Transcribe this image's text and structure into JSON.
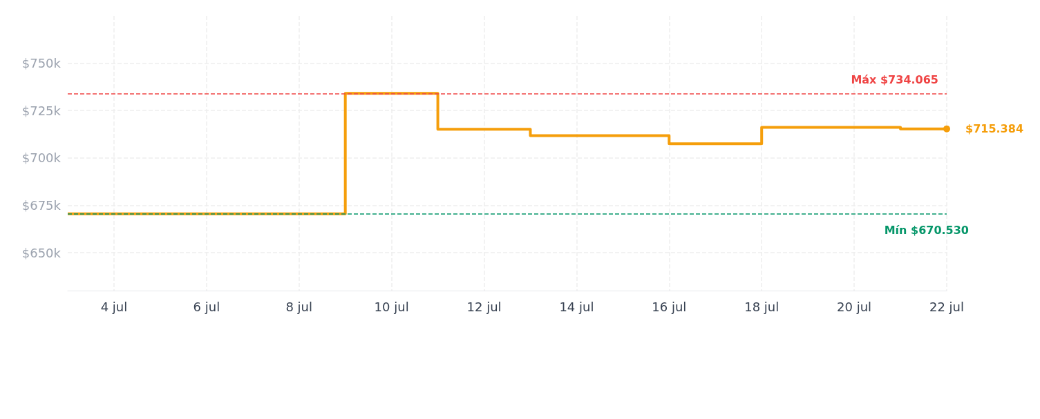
{
  "chart_data": {
    "type": "step",
    "x": [
      "--07-03",
      "--07-09",
      "--07-11",
      "--07-13",
      "--07-16",
      "--07-18",
      "--07-21",
      "--07-22"
    ],
    "series": [
      {
        "color": "#f59e0b",
        "values": [
          670530,
          734065,
          715200,
          711800,
          707500,
          716200,
          715384,
          715384
        ],
        "value_labels": [
          null,
          null,
          null,
          null,
          null,
          null,
          null,
          "$715.384"
        ]
      }
    ],
    "xlim": [
      "--07-03",
      "--07-22"
    ],
    "xticks": [
      {
        "value": "--07-04",
        "label": "4 jul"
      },
      {
        "value": "--07-06",
        "label": "6 jul"
      },
      {
        "value": "--07-08",
        "label": "8 jul"
      },
      {
        "value": "--07-10",
        "label": "10 jul"
      },
      {
        "value": "--07-12",
        "label": "12 jul"
      },
      {
        "value": "--07-14",
        "label": "14 jul"
      },
      {
        "value": "--07-16",
        "label": "16 jul"
      },
      {
        "value": "--07-18",
        "label": "18 jul"
      },
      {
        "value": "--07-20",
        "label": "20 jul"
      },
      {
        "value": "--07-22",
        "label": "22 jul"
      }
    ],
    "ylim": [
      630000,
      775000
    ],
    "yticks": [
      {
        "value": 650000,
        "label": "$650k"
      },
      {
        "value": 675000,
        "label": "$675k"
      },
      {
        "value": 700000,
        "label": "$700k"
      },
      {
        "value": 725000,
        "label": "$725k"
      },
      {
        "value": 750000,
        "label": "$750k"
      }
    ],
    "ref_lines": [
      {
        "axis": "y",
        "value": 734065,
        "label": "Máx $734.065",
        "color": "#ef4444",
        "line_style": "dashed"
      },
      {
        "axis": "y",
        "value": 670530,
        "label": "Mín $670.530",
        "color": "#059669",
        "line_style": "dashed"
      }
    ],
    "grid": true,
    "marker": "none",
    "line_style": "solid"
  }
}
